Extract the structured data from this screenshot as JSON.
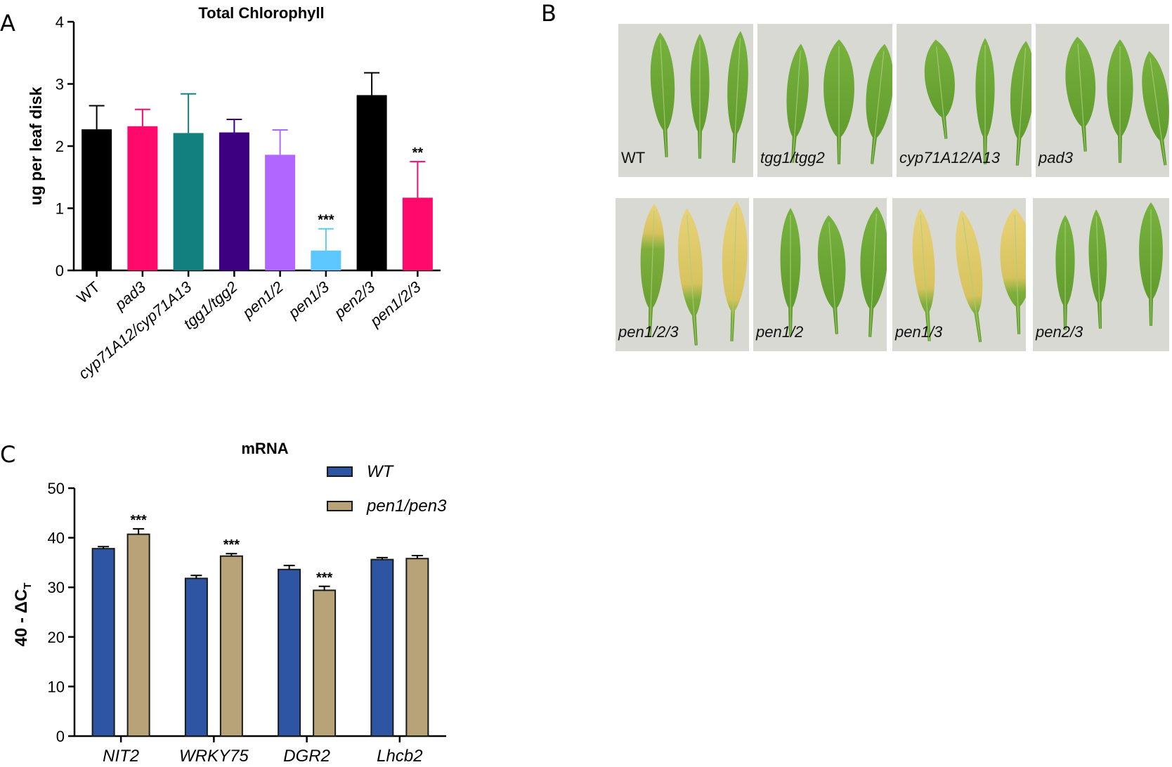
{
  "panels": {
    "a": "A",
    "b": "B",
    "c": "C"
  },
  "chart_data": [
    {
      "type": "bar",
      "title": "Total  Chlorophyll",
      "xlabel": "",
      "ylabel": "ug per leaf disk",
      "ylim": [
        0,
        4
      ],
      "yticks": [
        "0",
        "1",
        "2",
        "3",
        "4"
      ],
      "grid": false,
      "categories": [
        "WT",
        "pad3",
        "cyp71A12/cyp71A13",
        "tgg1/tgg2",
        "pen1/2",
        "pen1/3",
        "pen2/3",
        "pen1/2/3"
      ],
      "italic_categories": [
        false,
        true,
        true,
        true,
        true,
        true,
        true,
        true
      ],
      "values": [
        2.27,
        2.32,
        2.21,
        2.22,
        1.86,
        0.32,
        2.82,
        1.17
      ],
      "errors": [
        0.38,
        0.27,
        0.63,
        0.21,
        0.4,
        0.35,
        0.36,
        0.58
      ],
      "colors": [
        "#000000",
        "#ff0a6c",
        "#138080",
        "#3d0080",
        "#b066ff",
        "#5cc8ff",
        "#000000",
        "#ff0a6c"
      ],
      "annotations": [
        "",
        "",
        "",
        "",
        "",
        "***",
        "",
        "**"
      ]
    },
    {
      "type": "bar",
      "title": "mRNA",
      "xlabel": "",
      "ylabel": "40 - ΔC",
      "ylabel_subscript": "T",
      "ylim": [
        0,
        50
      ],
      "yticks": [
        "0",
        "10",
        "20",
        "30",
        "40",
        "50"
      ],
      "grid": false,
      "categories": [
        "NIT2",
        "WRKY75",
        "DGR2",
        "Lhcb2"
      ],
      "legend_position": "top-right",
      "series": [
        {
          "name": "WT",
          "color": "#2e55a3",
          "values": [
            37.8,
            31.8,
            33.6,
            35.6
          ],
          "errors": [
            0.4,
            0.6,
            0.8,
            0.4
          ],
          "annotations": [
            "",
            "",
            "",
            ""
          ]
        },
        {
          "name": "pen1/pen3",
          "color": "#b8a278",
          "values": [
            40.7,
            36.3,
            29.4,
            35.8
          ],
          "errors": [
            1.1,
            0.5,
            0.8,
            0.6
          ],
          "annotations": [
            "***",
            "***",
            "***",
            ""
          ]
        }
      ]
    }
  ],
  "photos": [
    {
      "label": "WT",
      "italic": false
    },
    {
      "label": "tgg1/tgg2",
      "italic": true
    },
    {
      "label": "cyp71A12/A13",
      "italic": true
    },
    {
      "label": "pad3",
      "italic": true
    },
    {
      "label": "pen1/2/3",
      "italic": true
    },
    {
      "label": "pen1/2",
      "italic": true
    },
    {
      "label": "pen1/3",
      "italic": true
    },
    {
      "label": "pen2/3",
      "italic": true
    }
  ]
}
